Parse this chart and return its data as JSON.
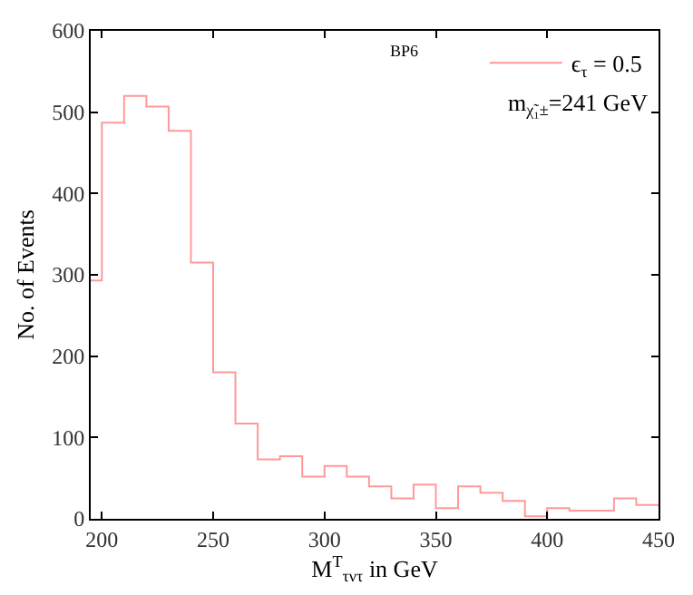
{
  "chart_data": {
    "type": "histogram",
    "xlabel": "M$^{T}$$_{τντ}$ in GeV",
    "ylabel": "No. of Events",
    "bins": [
      195,
      200,
      210,
      220,
      230,
      240,
      250,
      260,
      270,
      280,
      290,
      300,
      310,
      320,
      330,
      340,
      350,
      360,
      370,
      380,
      390,
      400,
      410,
      420,
      430,
      440,
      450
    ],
    "series": [
      {
        "name": "ϵ$_{τ}$ = 0.5",
        "color": "#ff9999",
        "values": [
          293,
          487,
          520,
          507,
          477,
          315,
          180,
          117,
          73,
          77,
          52,
          65,
          52,
          40,
          25,
          42,
          13,
          40,
          32,
          22,
          3,
          13,
          10,
          10,
          25,
          17
        ]
      }
    ],
    "xlim": [
      195,
      450
    ],
    "xticks": [
      200,
      250,
      300,
      350,
      400,
      450
    ],
    "ylim": [
      0,
      600
    ],
    "yticks": [
      0,
      100,
      200,
      300,
      400,
      500,
      600
    ],
    "annotations": [
      "BP6",
      "m$_{χ̃₁±}$=241 GeV"
    ],
    "legend": "top right"
  }
}
